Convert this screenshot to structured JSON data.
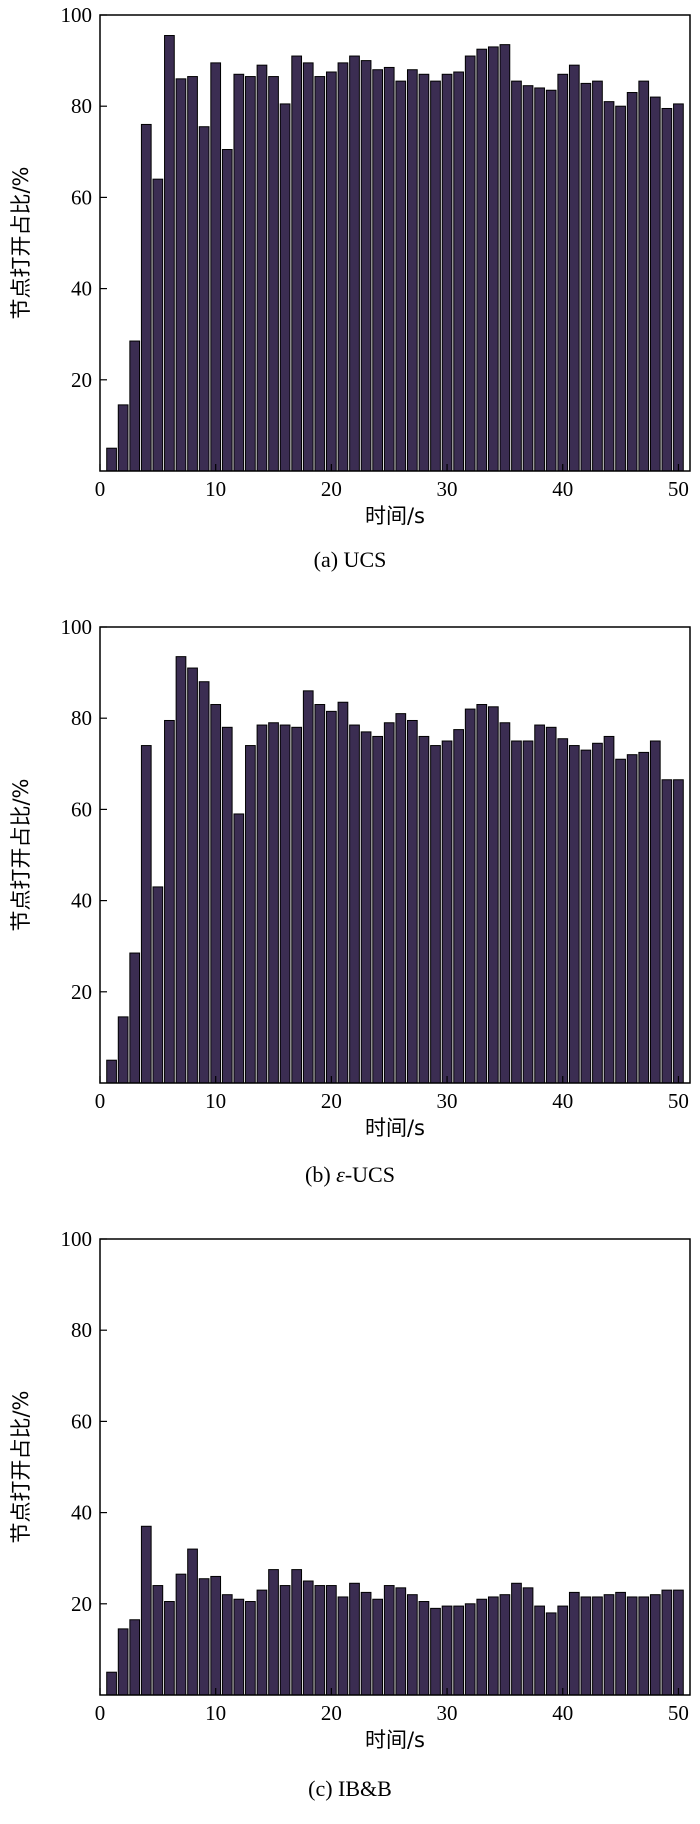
{
  "chart_data": [
    {
      "type": "bar",
      "caption": "(a) UCS",
      "xlabel": "时间/s",
      "ylabel": "节点打开占比/%",
      "xlim": [
        0,
        51
      ],
      "ylim": [
        0,
        100
      ],
      "xticks": [
        0,
        10,
        20,
        30,
        40,
        50
      ],
      "yticks": [
        20,
        40,
        60,
        80,
        100
      ],
      "x": [
        1,
        2,
        3,
        4,
        5,
        6,
        7,
        8,
        9,
        10,
        11,
        12,
        13,
        14,
        15,
        16,
        17,
        18,
        19,
        20,
        21,
        22,
        23,
        24,
        25,
        26,
        27,
        28,
        29,
        30,
        31,
        32,
        33,
        34,
        35,
        36,
        37,
        38,
        39,
        40,
        41,
        42,
        43,
        44,
        45,
        46,
        47,
        48,
        49,
        50
      ],
      "values": [
        5,
        14.5,
        28.5,
        76,
        64,
        95.5,
        86,
        86.5,
        75.5,
        89.5,
        70.5,
        87,
        86.5,
        89,
        86.5,
        80.5,
        91,
        89.5,
        86.5,
        87.5,
        89.5,
        91,
        90,
        88,
        88.5,
        85.5,
        88,
        87,
        85.5,
        87,
        87.5,
        91,
        92.5,
        93,
        93.5,
        85.5,
        84.5,
        84,
        83.5,
        87,
        89,
        85,
        85.5,
        81,
        80,
        83,
        85.5,
        82,
        79.5,
        80.5
      ]
    },
    {
      "type": "bar",
      "caption_prefix": "(b) ",
      "caption_eps": "ε",
      "caption_suffix": "-UCS",
      "xlabel": "时间/s",
      "ylabel": "节点打开占比/%",
      "xlim": [
        0,
        51
      ],
      "ylim": [
        0,
        100
      ],
      "xticks": [
        0,
        10,
        20,
        30,
        40,
        50
      ],
      "yticks": [
        20,
        40,
        60,
        80,
        100
      ],
      "x": [
        1,
        2,
        3,
        4,
        5,
        6,
        7,
        8,
        9,
        10,
        11,
        12,
        13,
        14,
        15,
        16,
        17,
        18,
        19,
        20,
        21,
        22,
        23,
        24,
        25,
        26,
        27,
        28,
        29,
        30,
        31,
        32,
        33,
        34,
        35,
        36,
        37,
        38,
        39,
        40,
        41,
        42,
        43,
        44,
        45,
        46,
        47,
        48,
        49,
        50
      ],
      "values": [
        5,
        14.5,
        28.5,
        74,
        43,
        79.5,
        93.5,
        91,
        88,
        83,
        78,
        59,
        74,
        78.5,
        79,
        78.5,
        78,
        86,
        83,
        81.5,
        83.5,
        78.5,
        77,
        76,
        79,
        81,
        79.5,
        76,
        74,
        75,
        77.5,
        82,
        83,
        82.5,
        79,
        75,
        75,
        78.5,
        78,
        75.5,
        74,
        73,
        74.5,
        76,
        71,
        72,
        72.5,
        75,
        66.5,
        66.5
      ]
    },
    {
      "type": "bar",
      "caption": "(c) IB&B",
      "xlabel": "时间/s",
      "ylabel": "节点打开占比/%",
      "xlim": [
        0,
        51
      ],
      "ylim": [
        0,
        100
      ],
      "xticks": [
        0,
        10,
        20,
        30,
        40,
        50
      ],
      "yticks": [
        20,
        40,
        60,
        80,
        100
      ],
      "x": [
        1,
        2,
        3,
        4,
        5,
        6,
        7,
        8,
        9,
        10,
        11,
        12,
        13,
        14,
        15,
        16,
        17,
        18,
        19,
        20,
        21,
        22,
        23,
        24,
        25,
        26,
        27,
        28,
        29,
        30,
        31,
        32,
        33,
        34,
        35,
        36,
        37,
        38,
        39,
        40,
        41,
        42,
        43,
        44,
        45,
        46,
        47,
        48,
        49,
        50
      ],
      "values": [
        5,
        14.5,
        16.5,
        37,
        24,
        20.5,
        26.5,
        32,
        25.5,
        26,
        22,
        21,
        20.5,
        23,
        27.5,
        24,
        27.5,
        25,
        24,
        24,
        21.5,
        24.5,
        22.5,
        21,
        24,
        23.5,
        22,
        20.5,
        19,
        19.5,
        19.5,
        20,
        21,
        21.5,
        22,
        24.5,
        23.5,
        19.5,
        18,
        19.5,
        22.5,
        21.5,
        21.5,
        22,
        22.5,
        21.5,
        21.5,
        22,
        23,
        23
      ]
    }
  ],
  "colors": {
    "bar_fill": "#3b2d52",
    "bar_stroke": "#000000",
    "axis": "#000000",
    "background": "#ffffff"
  }
}
